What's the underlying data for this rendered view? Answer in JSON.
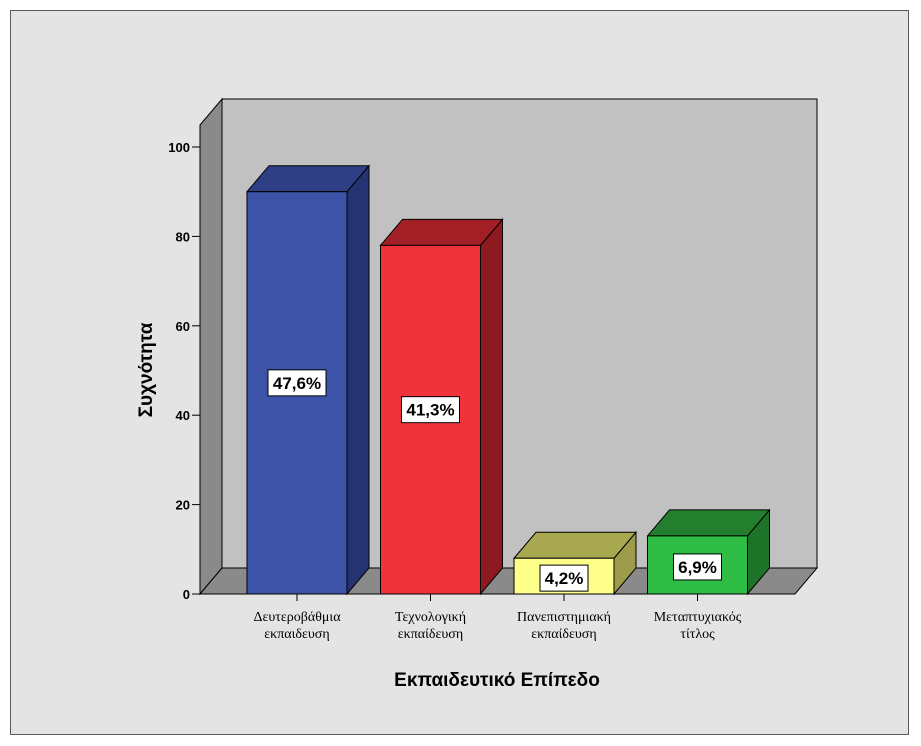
{
  "chart_data": {
    "type": "bar",
    "categories": [
      [
        "Δευτεροβάθμια",
        "εκπαιδευση"
      ],
      [
        "Τεχνολογική",
        "εκπαίδευση"
      ],
      [
        "Πανεπιστημιακή",
        "εκπαίδευση"
      ],
      [
        "Μεταπτυχιακός",
        "τίτλος"
      ]
    ],
    "values": [
      90,
      78,
      8,
      13
    ],
    "data_labels": [
      "47,6%",
      "41,3%",
      "4,2%",
      "6,9%"
    ],
    "colors": [
      {
        "front": "#3d53a8",
        "side": "#253372",
        "top": "#2e3f86"
      },
      {
        "front": "#f0323a",
        "side": "#8e1a1f",
        "top": "#a11f25"
      },
      {
        "front": "#fefe8a",
        "side": "#9c9c4a",
        "top": "#a8a850"
      },
      {
        "front": "#2fbc45",
        "side": "#1d7428",
        "top": "#237e2e"
      }
    ],
    "xlabel": "Εκπαιδευτικό Επίπεδο",
    "ylabel": "Συχνότητα",
    "ylim": [
      0,
      100
    ],
    "yticks": [
      0,
      20,
      40,
      60,
      80,
      100
    ],
    "grid": false,
    "style": "3d"
  }
}
